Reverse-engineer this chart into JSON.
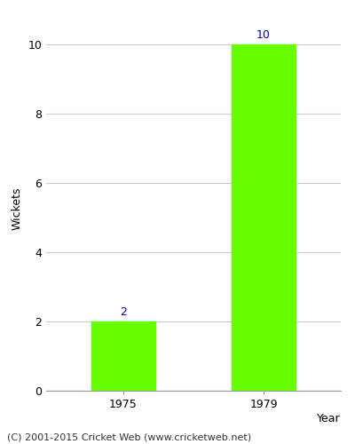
{
  "categories": [
    "1975",
    "1979"
  ],
  "values": [
    2,
    10
  ],
  "bar_color": "#66ff00",
  "bar_width": 0.45,
  "ylabel": "Wickets",
  "xlabel": "Year",
  "ylim": [
    0,
    10.5
  ],
  "yticks": [
    0,
    2,
    4,
    6,
    8,
    10
  ],
  "label_color": "#0000cc",
  "label_fontsize": 9,
  "axis_label_fontsize": 9,
  "tick_fontsize": 9,
  "footer_text": "(C) 2001-2015 Cricket Web (www.cricketweb.net)",
  "footer_fontsize": 8,
  "background_color": "#ffffff",
  "grid_color": "#cccccc"
}
